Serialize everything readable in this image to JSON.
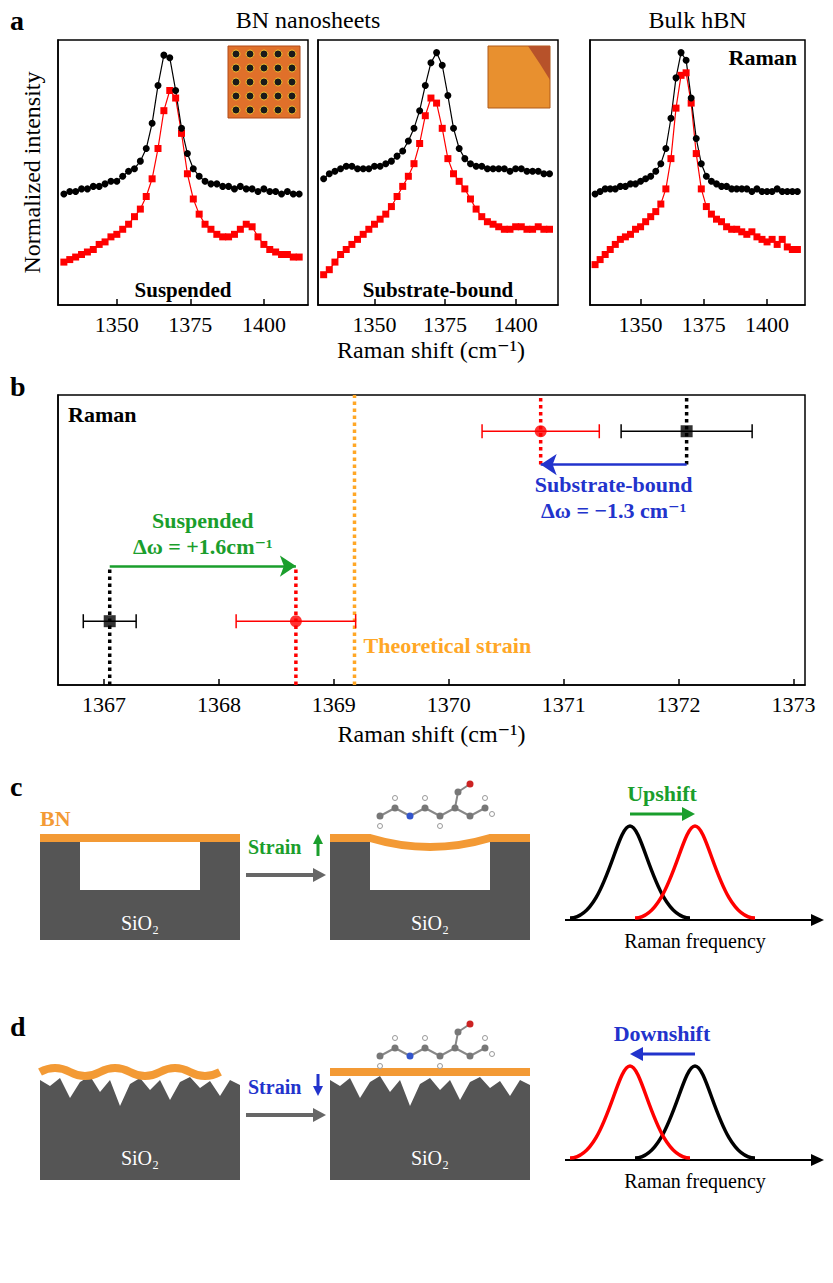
{
  "figure": {
    "panel_labels": [
      "a",
      "b",
      "c",
      "d"
    ],
    "panel_a_headers": [
      "BN nanosheets",
      "Bulk hBN"
    ],
    "panel_a_ylabel": "Normalized intensity",
    "panel_a_xlabel": "Raman shift (cm⁻¹)"
  },
  "chart_data": [
    {
      "type": "line",
      "annotation": "Suspended",
      "x": [
        1332,
        1334,
        1336,
        1338,
        1340,
        1342,
        1344,
        1346,
        1348,
        1350,
        1352,
        1354,
        1356,
        1358,
        1360,
        1362,
        1364,
        1366,
        1368,
        1370,
        1372,
        1374,
        1376,
        1378,
        1380,
        1382,
        1384,
        1386,
        1388,
        1390,
        1392,
        1394,
        1396,
        1398,
        1400,
        1402,
        1404,
        1406,
        1408,
        1410,
        1412
      ],
      "xlim": [
        1330,
        1415
      ],
      "xticks": [
        1350,
        1375,
        1400
      ],
      "ylim": [
        0,
        1.05
      ],
      "tick_labels": "x",
      "series": [
        {
          "color": "#ff0000",
          "marker": "square",
          "line_style": "solid",
          "values": [
            0.17,
            0.18,
            0.19,
            0.2,
            0.21,
            0.22,
            0.24,
            0.25,
            0.27,
            0.28,
            0.3,
            0.32,
            0.35,
            0.38,
            0.43,
            0.5,
            0.62,
            0.77,
            0.85,
            0.82,
            0.68,
            0.52,
            0.42,
            0.36,
            0.32,
            0.3,
            0.28,
            0.27,
            0.27,
            0.28,
            0.3,
            0.32,
            0.31,
            0.27,
            0.24,
            0.22,
            0.21,
            0.2,
            0.2,
            0.19,
            0.19
          ]
        },
        {
          "color": "#000000",
          "marker": "circle",
          "line_style": "solid",
          "values": [
            0.44,
            0.45,
            0.45,
            0.46,
            0.46,
            0.47,
            0.47,
            0.48,
            0.49,
            0.49,
            0.51,
            0.53,
            0.54,
            0.57,
            0.62,
            0.72,
            0.87,
            0.99,
            0.98,
            0.85,
            0.7,
            0.6,
            0.54,
            0.51,
            0.49,
            0.48,
            0.48,
            0.47,
            0.47,
            0.46,
            0.47,
            0.46,
            0.46,
            0.45,
            0.46,
            0.45,
            0.45,
            0.44,
            0.45,
            0.44,
            0.44
          ]
        }
      ]
    },
    {
      "type": "line",
      "annotation": "Substrate-bound",
      "x": [
        1332,
        1334,
        1336,
        1338,
        1340,
        1342,
        1344,
        1346,
        1348,
        1350,
        1352,
        1354,
        1356,
        1358,
        1360,
        1362,
        1364,
        1366,
        1368,
        1370,
        1372,
        1374,
        1376,
        1378,
        1380,
        1382,
        1384,
        1386,
        1388,
        1390,
        1392,
        1394,
        1396,
        1398,
        1400,
        1402,
        1404,
        1406,
        1408,
        1410,
        1412
      ],
      "xlim": [
        1330,
        1415
      ],
      "xticks": [
        1350,
        1375,
        1400
      ],
      "ylim": [
        0,
        1.05
      ],
      "tick_labels": "x",
      "series": [
        {
          "color": "#ff0000",
          "marker": "square",
          "line_style": "solid",
          "values": [
            0.12,
            0.14,
            0.17,
            0.2,
            0.22,
            0.24,
            0.26,
            0.28,
            0.3,
            0.32,
            0.34,
            0.36,
            0.39,
            0.43,
            0.47,
            0.51,
            0.56,
            0.64,
            0.75,
            0.82,
            0.8,
            0.7,
            0.58,
            0.52,
            0.49,
            0.46,
            0.42,
            0.38,
            0.35,
            0.33,
            0.32,
            0.31,
            0.3,
            0.3,
            0.31,
            0.31,
            0.3,
            0.3,
            0.31,
            0.3,
            0.3
          ]
        },
        {
          "color": "#000000",
          "marker": "circle",
          "line_style": "solid",
          "values": [
            0.5,
            0.52,
            0.53,
            0.54,
            0.55,
            0.55,
            0.54,
            0.54,
            0.54,
            0.55,
            0.55,
            0.56,
            0.57,
            0.59,
            0.61,
            0.65,
            0.7,
            0.77,
            0.87,
            0.96,
            1.0,
            0.95,
            0.83,
            0.7,
            0.62,
            0.58,
            0.56,
            0.55,
            0.55,
            0.54,
            0.54,
            0.54,
            0.54,
            0.53,
            0.54,
            0.54,
            0.53,
            0.53,
            0.53,
            0.52,
            0.52
          ]
        }
      ]
    },
    {
      "type": "line",
      "annotation": "Raman",
      "x": [
        1332,
        1334,
        1336,
        1338,
        1340,
        1342,
        1344,
        1346,
        1348,
        1350,
        1352,
        1354,
        1356,
        1358,
        1360,
        1362,
        1364,
        1366,
        1368,
        1370,
        1372,
        1374,
        1376,
        1378,
        1380,
        1382,
        1384,
        1386,
        1388,
        1390,
        1392,
        1394,
        1396,
        1398,
        1400,
        1402,
        1404,
        1406,
        1408,
        1410,
        1412
      ],
      "xlim": [
        1330,
        1415
      ],
      "xticks": [
        1350,
        1375,
        1400
      ],
      "ylim": [
        0,
        1.05
      ],
      "tick_labels": "x",
      "series": [
        {
          "color": "#ff0000",
          "marker": "square",
          "line_style": "solid",
          "values": [
            0.16,
            0.18,
            0.2,
            0.22,
            0.24,
            0.26,
            0.27,
            0.28,
            0.3,
            0.31,
            0.33,
            0.35,
            0.37,
            0.4,
            0.46,
            0.58,
            0.78,
            0.91,
            0.92,
            0.8,
            0.6,
            0.46,
            0.39,
            0.36,
            0.34,
            0.33,
            0.31,
            0.3,
            0.3,
            0.29,
            0.28,
            0.29,
            0.27,
            0.26,
            0.25,
            0.26,
            0.24,
            0.26,
            0.23,
            0.22,
            0.22
          ]
        },
        {
          "color": "#000000",
          "marker": "circle",
          "line_style": "solid",
          "values": [
            0.44,
            0.45,
            0.46,
            0.46,
            0.46,
            0.47,
            0.47,
            0.48,
            0.48,
            0.49,
            0.5,
            0.51,
            0.53,
            0.56,
            0.62,
            0.74,
            0.9,
            1.0,
            0.97,
            0.82,
            0.66,
            0.56,
            0.51,
            0.49,
            0.48,
            0.47,
            0.47,
            0.46,
            0.46,
            0.46,
            0.46,
            0.45,
            0.46,
            0.45,
            0.45,
            0.45,
            0.46,
            0.45,
            0.45,
            0.45,
            0.45
          ]
        }
      ]
    },
    {
      "type": "scatter",
      "annotation": "Raman",
      "xlabel": "Raman shift (cm⁻¹)",
      "xlim": [
        1366.6,
        1373.1
      ],
      "xticks": [
        1367,
        1368,
        1369,
        1370,
        1371,
        1372,
        1373
      ],
      "ylim": [
        0,
        1
      ],
      "tick_labels": "x",
      "series": [
        {
          "color": "#000000",
          "marker": "square",
          "x": [
            1367.05,
            1372.07
          ],
          "values": [
            0.22,
            0.875
          ],
          "error": [
            0.23,
            0.57
          ]
        },
        {
          "color": "#ff0000",
          "marker": "circle",
          "x": [
            1368.67,
            1370.8
          ],
          "values": [
            0.22,
            0.875
          ],
          "error": [
            0.52,
            0.51
          ]
        }
      ],
      "reference_lines": [
        {
          "x": 1367.05,
          "y": [
            0,
            0.41
          ],
          "color": "#000000"
        },
        {
          "x": 1368.67,
          "y": [
            0,
            0.41
          ],
          "color": "#ff0000"
        },
        {
          "x": 1369.18,
          "y": [
            0,
            1
          ],
          "color": "#ffa726"
        },
        {
          "x": 1370.8,
          "y": [
            0.76,
            1
          ],
          "color": "#ff0000"
        },
        {
          "x": 1372.07,
          "y": [
            0.76,
            1
          ],
          "color": "#000000"
        }
      ],
      "shifts": [
        {
          "label": "Suspended",
          "delta_text": "Δω = +1.6cm⁻¹",
          "color": "#1a9e2c",
          "from": 1367.05,
          "to": 1368.67,
          "y": 0.41
        },
        {
          "label": "Substrate-bound",
          "delta_text": "Δω = −1.3 cm⁻¹",
          "color": "#2233cc",
          "from": 1372.07,
          "to": 1370.8,
          "y": 0.76
        }
      ],
      "theory_label": {
        "text": "Theoretical strain",
        "x": 1369.18,
        "color": "#ffa726"
      }
    }
  ],
  "diagrams": {
    "c": {
      "layer_label": "BN",
      "substrate_label": "SiO₂",
      "strain_label": "Strain",
      "strain_direction": "up",
      "strain_color": "#1a9e2c",
      "shift_label": "Upshift",
      "shift_direction": "up",
      "axis_label": "Raman frequency"
    },
    "d": {
      "substrate_label": "SiO₂",
      "strain_label": "Strain",
      "strain_direction": "down",
      "strain_color": "#2233cc",
      "shift_label": "Downshift",
      "shift_direction": "down",
      "axis_label": "Raman frequency"
    }
  }
}
